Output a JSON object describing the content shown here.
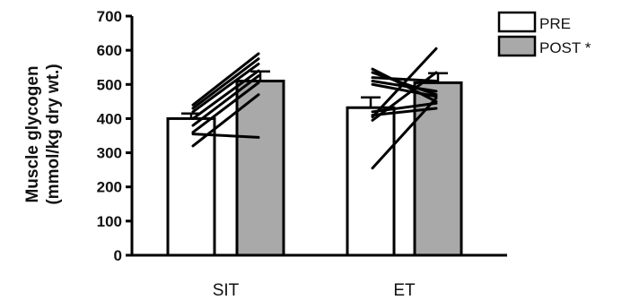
{
  "chart_data": {
    "type": "bar",
    "categories": [
      "SIT",
      "ET"
    ],
    "series": [
      {
        "name": "PRE",
        "values": [
          400,
          432
        ],
        "error": [
          15,
          30
        ],
        "color": "#ffffff"
      },
      {
        "name": "POST *",
        "values": [
          510,
          505
        ],
        "error": [
          28,
          28
        ],
        "color": "#a9a9a9"
      }
    ],
    "individual_lines": [
      [
        [
          440,
          590
        ],
        [
          430,
          575
        ],
        [
          420,
          560
        ],
        [
          400,
          540
        ],
        [
          380,
          525
        ],
        [
          360,
          505
        ],
        [
          320,
          470
        ],
        [
          355,
          345
        ]
      ],
      [
        [
          545,
          450
        ],
        [
          535,
          470
        ],
        [
          520,
          510
        ],
        [
          510,
          480
        ],
        [
          500,
          465
        ],
        [
          420,
          445
        ],
        [
          410,
          430
        ],
        [
          405,
          605
        ],
        [
          395,
          535
        ],
        [
          255,
          460
        ]
      ]
    ],
    "ylabel_line1": "Muscle  glycogen",
    "ylabel_line2": "(mmol/kg dry wt.)",
    "ylim": [
      0,
      700
    ],
    "yticks": [
      0,
      100,
      200,
      300,
      400,
      500,
      600,
      700
    ],
    "legend_position": "top-right",
    "grid": false
  }
}
